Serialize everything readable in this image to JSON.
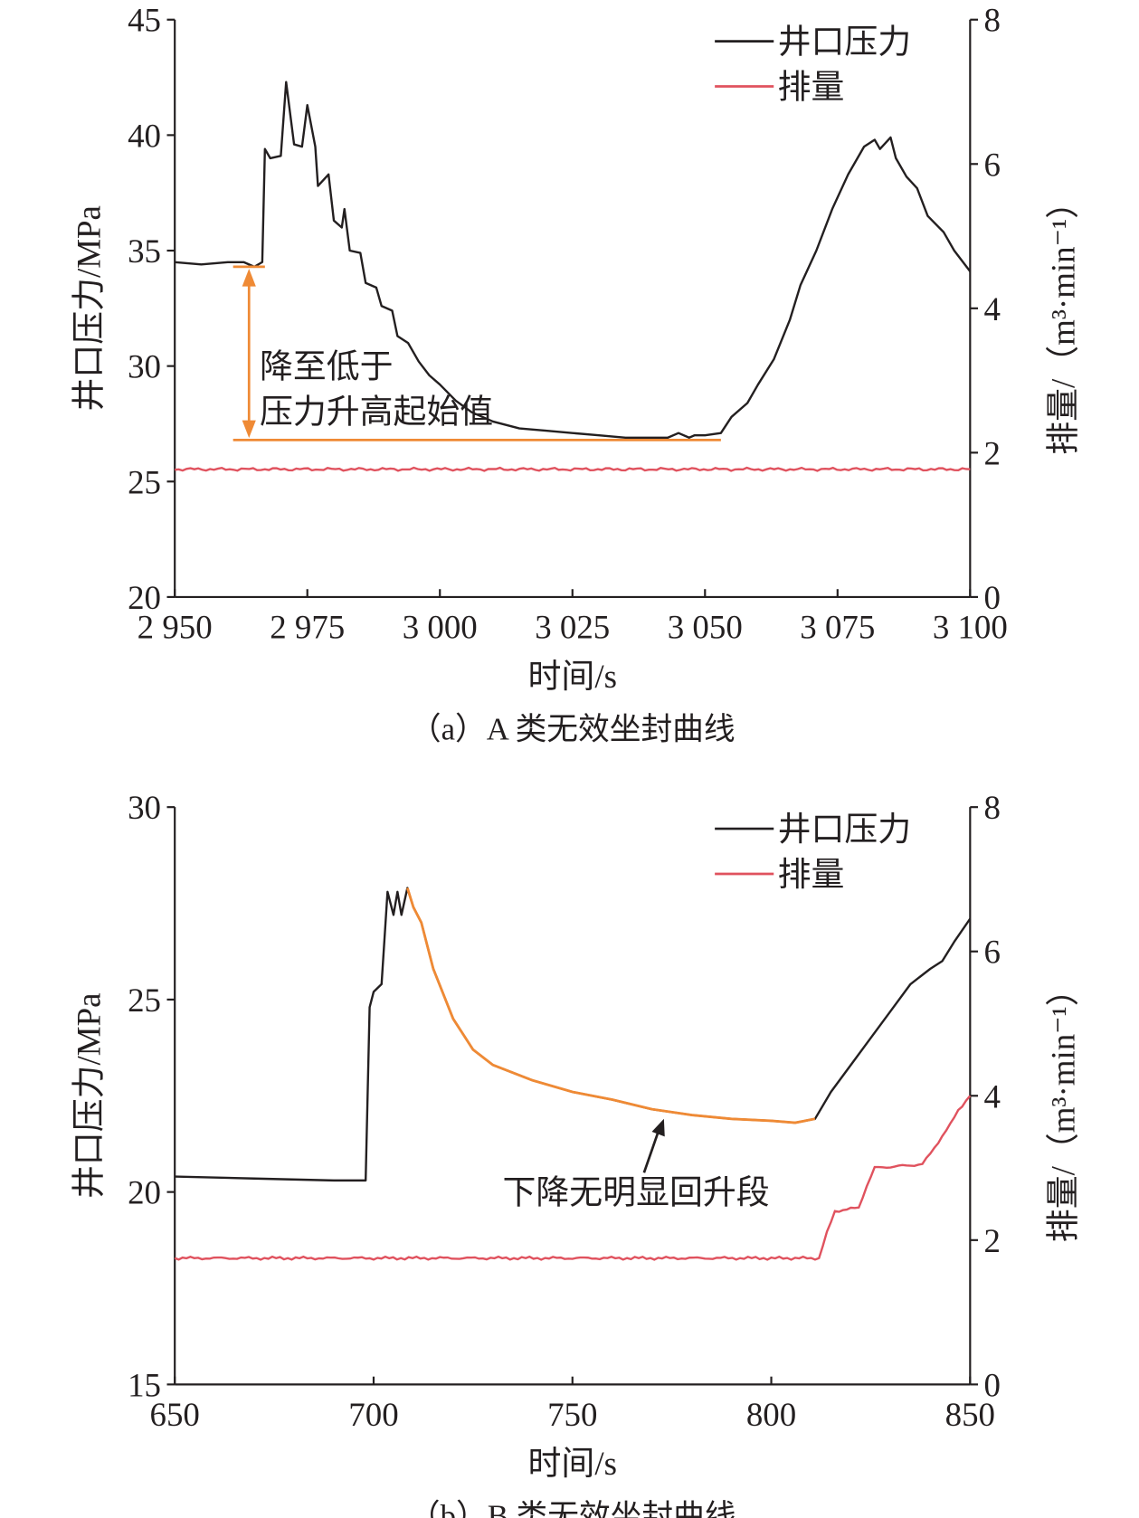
{
  "chart_data": [
    {
      "type": "line",
      "caption": "（a）A 类无效坐封曲线",
      "xlabel": "时间/s",
      "ylabel": "井口压力/MPa",
      "y2label": "排量/（m³·min⁻¹）",
      "xlim": [
        2950,
        3100
      ],
      "ylim": [
        20,
        45
      ],
      "y2lim": [
        0,
        8
      ],
      "xticks": [
        2950,
        2975,
        3000,
        3025,
        3050,
        3075,
        3100
      ],
      "xtick_labels": [
        "2 950",
        "2 975",
        "3 000",
        "3 025",
        "3 050",
        "3 075",
        "3 100"
      ],
      "yticks": [
        20,
        25,
        30,
        35,
        40,
        45
      ],
      "y2ticks": [
        0,
        2,
        4,
        6,
        8
      ],
      "legend": {
        "position": "top-right",
        "entries": [
          "井口压力",
          "排量"
        ]
      },
      "colors": {
        "pressure": "#231f20",
        "flow": "#e0525e",
        "annotation": "#ef8a35"
      },
      "series": [
        {
          "name": "井口压力",
          "axis": "left",
          "x": [
            2950,
            2955,
            2960,
            2963,
            2965,
            2966.5,
            2967,
            2968,
            2970,
            2971,
            2972.5,
            2974,
            2975,
            2976.5,
            2977,
            2979,
            2980,
            2981.5,
            2982,
            2983,
            2985,
            2986,
            2988,
            2989,
            2991,
            2992,
            2994,
            2996,
            2998,
            3000,
            3003,
            3006,
            3010,
            3015,
            3020,
            3025,
            3030,
            3035,
            3040,
            3043,
            3045,
            3047,
            3048,
            3050,
            3053,
            3055,
            3058,
            3060,
            3063,
            3066,
            3068,
            3071,
            3074,
            3077,
            3080,
            3082,
            3083,
            3085,
            3086,
            3088,
            3090,
            3092,
            3095,
            3097,
            3100
          ],
          "y": [
            34.5,
            34.4,
            34.5,
            34.5,
            34.3,
            34.5,
            39.4,
            39.0,
            39.1,
            42.3,
            39.6,
            39.5,
            41.3,
            39.5,
            37.8,
            38.3,
            36.3,
            36.0,
            36.8,
            35.0,
            34.9,
            33.6,
            33.4,
            32.6,
            32.4,
            31.3,
            31.0,
            30.2,
            29.6,
            29.2,
            28.5,
            28.0,
            27.6,
            27.3,
            27.2,
            27.1,
            27.0,
            26.9,
            26.9,
            26.9,
            27.1,
            26.9,
            27.0,
            27.0,
            27.1,
            27.8,
            28.4,
            29.2,
            30.3,
            32.0,
            33.5,
            35.0,
            36.8,
            38.3,
            39.5,
            39.8,
            39.4,
            39.9,
            39.0,
            38.2,
            37.7,
            36.5,
            35.8,
            35.0,
            34.1
          ]
        },
        {
          "name": "排量",
          "axis": "right",
          "x": [
            2950,
            3100
          ],
          "y": [
            1.77,
            1.77
          ]
        }
      ],
      "annotations": [
        {
          "text_lines": [
            "降至低于",
            "压力升高起始值"
          ],
          "type": "range-arrow",
          "x": 2964,
          "y_from": 34.3,
          "y_to": 26.8,
          "line1": [
            2961,
            2967,
            34.3
          ],
          "line2": [
            2961,
            3053,
            26.8
          ],
          "text_x": 2966,
          "text_y": 30.0
        }
      ]
    },
    {
      "type": "line",
      "caption": "（b）B 类无效坐封曲线",
      "xlabel": "时间/s",
      "ylabel": "井口压力/MPa",
      "y2label": "排量/（m³·min⁻¹）",
      "xlim": [
        650,
        850
      ],
      "ylim": [
        15,
        30
      ],
      "y2lim": [
        0,
        8
      ],
      "xticks": [
        650,
        700,
        750,
        800,
        850
      ],
      "xtick_labels": [
        "650",
        "700",
        "750",
        "800",
        "850"
      ],
      "yticks": [
        15,
        20,
        25,
        30
      ],
      "y2ticks": [
        0,
        2,
        4,
        6,
        8
      ],
      "legend": {
        "position": "top-right",
        "entries": [
          "井口压力",
          "排量"
        ]
      },
      "colors": {
        "pressure": "#231f20",
        "flow": "#e0525e",
        "annotation": "#ef8a35"
      },
      "series": [
        {
          "name": "井口压力",
          "axis": "left",
          "x": [
            650,
            670,
            690,
            698,
            699,
            700,
            702,
            703.5,
            705,
            706,
            707,
            708.5,
            710,
            712,
            715,
            720,
            725,
            730,
            740,
            750,
            760,
            770,
            780,
            790,
            800,
            806,
            811,
            815,
            820,
            825,
            830,
            835,
            840,
            843,
            846,
            850
          ],
          "y": [
            20.4,
            20.35,
            20.3,
            20.3,
            24.8,
            25.2,
            25.4,
            27.8,
            27.2,
            27.8,
            27.2,
            27.9,
            27.4,
            27.0,
            25.8,
            24.5,
            23.7,
            23.3,
            22.9,
            22.6,
            22.4,
            22.15,
            22.0,
            21.9,
            21.85,
            21.8,
            21.9,
            22.6,
            23.3,
            24.0,
            24.7,
            25.4,
            25.8,
            26.0,
            26.5,
            27.1
          ],
          "highlight_range": [
            708.5,
            811
          ]
        },
        {
          "name": "排量",
          "axis": "right",
          "x": [
            650,
            700,
            750,
            800,
            812,
            814,
            816,
            822,
            824,
            826,
            838,
            840,
            845,
            847,
            850
          ],
          "y": [
            1.75,
            1.75,
            1.75,
            1.75,
            1.75,
            2.1,
            2.4,
            2.45,
            2.75,
            3.0,
            3.05,
            3.2,
            3.6,
            3.8,
            4.0
          ]
        }
      ],
      "annotations": [
        {
          "text_lines": [
            "下降无明显回升段"
          ],
          "type": "arrow",
          "from": [
            768,
            20.5
          ],
          "to": [
            773,
            21.9
          ],
          "text_x": 766,
          "text_y": 20.0
        }
      ]
    }
  ]
}
